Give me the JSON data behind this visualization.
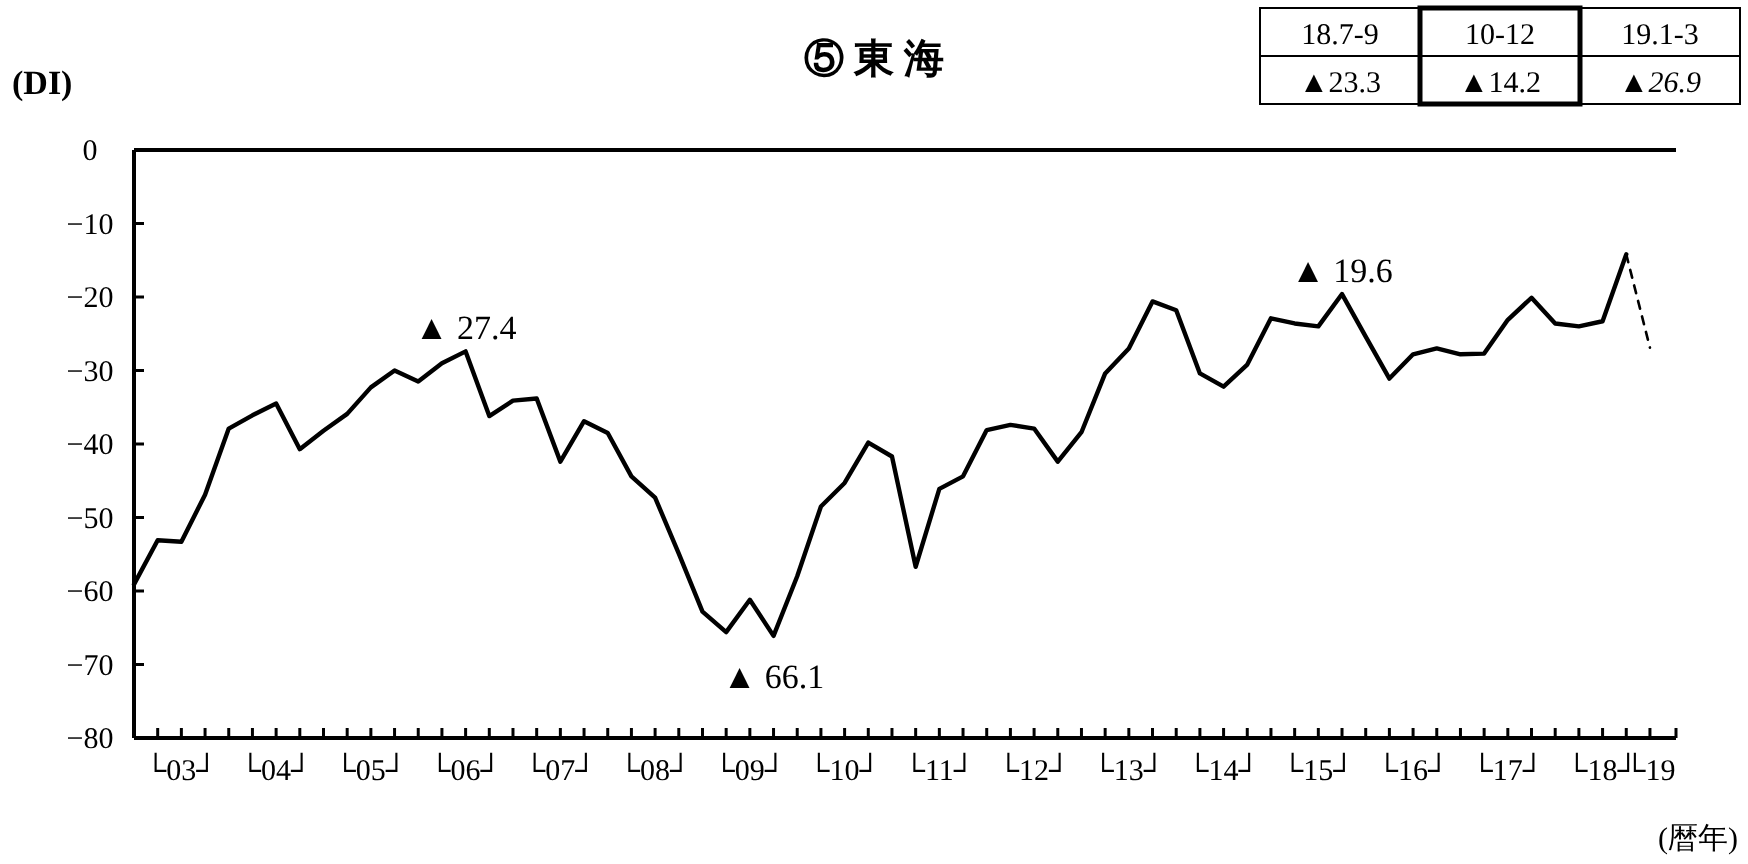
{
  "chart_data": {
    "type": "line",
    "title": "⑤ 東 海",
    "ylabel": "(DI)",
    "xlabel": "(暦年)",
    "categories": [
      null,
      null,
      "└03┘",
      null,
      null,
      null,
      "└04┘",
      null,
      null,
      null,
      "└05┘",
      null,
      null,
      null,
      "└06┘",
      null,
      null,
      null,
      "└07┘",
      null,
      null,
      null,
      "└08┘",
      null,
      null,
      null,
      "└09┘",
      null,
      null,
      null,
      "└10┘",
      null,
      null,
      null,
      "└11┘",
      null,
      null,
      null,
      "└12┘",
      null,
      null,
      null,
      "└13┘",
      null,
      null,
      null,
      "└14┘",
      null,
      null,
      null,
      "└15┘",
      null,
      null,
      null,
      "└16┘",
      null,
      null,
      null,
      "└17┘",
      null,
      null,
      null,
      "└18┘",
      null,
      "└19"
    ],
    "series": [
      {
        "color": "#000000",
        "line_style": "solid",
        "values": [
          -59.1,
          -53.1,
          -53.3,
          -46.9,
          -37.9,
          -36.1,
          -34.5,
          -40.7,
          -38.2,
          -35.9,
          -32.3,
          -30.0,
          -31.5,
          -29.0,
          -27.4,
          -36.2,
          -34.1,
          -33.8,
          -42.4,
          -36.9,
          -38.5,
          -44.4,
          -47.3,
          -54.9,
          -62.8,
          -65.6,
          -61.2,
          -66.1,
          -58.0,
          -48.5,
          -45.3,
          -39.8,
          -41.7,
          -56.7,
          -46.1,
          -44.4,
          -38.1,
          -37.4,
          -37.9,
          -42.4,
          -38.4,
          -30.4,
          -27.0,
          -20.6,
          -21.8,
          -30.4,
          -32.2,
          -29.2,
          -22.9,
          -23.6,
          -24.0,
          -19.6,
          -25.4,
          -31.1,
          -27.8,
          -27.0,
          -27.8,
          -27.7,
          -23.1,
          -20.1,
          -23.6,
          -24.0,
          -23.3,
          -14.2,
          null
        ]
      },
      {
        "color": "#000000",
        "line_style": "dashed",
        "values": [
          null,
          null,
          null,
          null,
          null,
          null,
          null,
          null,
          null,
          null,
          null,
          null,
          null,
          null,
          null,
          null,
          null,
          null,
          null,
          null,
          null,
          null,
          null,
          null,
          null,
          null,
          null,
          null,
          null,
          null,
          null,
          null,
          null,
          null,
          null,
          null,
          null,
          null,
          null,
          null,
          null,
          null,
          null,
          null,
          null,
          null,
          null,
          null,
          null,
          null,
          null,
          null,
          null,
          null,
          null,
          null,
          null,
          null,
          null,
          null,
          null,
          null,
          null,
          -14.2,
          -26.9
        ]
      }
    ],
    "ylim": [
      -80,
      0
    ],
    "yticks": [
      0,
      -10,
      -20,
      -30,
      -40,
      -50,
      -60,
      -70,
      -80
    ],
    "annotations": [
      {
        "text": "▲ 27.4",
        "x": "└06┘",
        "y": -27.4
      },
      {
        "text": "▲ 66.1",
        "y": -66.1
      },
      {
        "text": "▲ 19.6",
        "y": -19.6
      },
      "18.7-9",
      "10-12",
      "19.1-3",
      "▲23.3",
      "▲14.2",
      "▲*26.9*"
    ],
    "grid": false,
    "marker": "none"
  }
}
